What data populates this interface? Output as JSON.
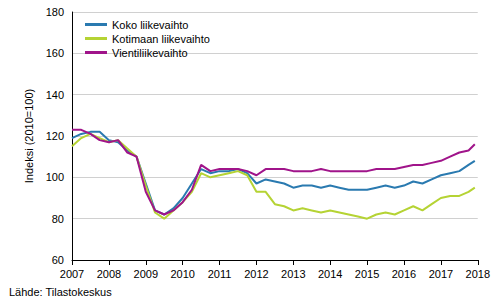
{
  "chart_data": {
    "type": "line",
    "y_label": "Indeksi (2010=100)",
    "source": "Lähde: Tilastokeskus",
    "x": [
      2007,
      2007.25,
      2007.5,
      2007.75,
      2008,
      2008.25,
      2008.5,
      2008.75,
      2009,
      2009.25,
      2009.5,
      2009.75,
      2010,
      2010.25,
      2010.5,
      2010.75,
      2011,
      2011.25,
      2011.5,
      2011.75,
      2012,
      2012.25,
      2012.5,
      2012.75,
      2013,
      2013.25,
      2013.5,
      2013.75,
      2014,
      2014.25,
      2014.5,
      2014.75,
      2015,
      2015.25,
      2015.5,
      2015.75,
      2016,
      2016.25,
      2016.5,
      2016.75,
      2017,
      2017.25,
      2017.5,
      2017.75,
      2017.92
    ],
    "series": [
      {
        "name": "Koko liikevaihto",
        "color": "#2a7ab0",
        "values": [
          119,
          121,
          122,
          122,
          118,
          117,
          113,
          110,
          97,
          84,
          82,
          85,
          90,
          97,
          104,
          102,
          103,
          103,
          104,
          102,
          97,
          99,
          98,
          97,
          95,
          96,
          96,
          95,
          96,
          95,
          94,
          94,
          94,
          95,
          96,
          95,
          96,
          98,
          97,
          99,
          101,
          102,
          103,
          106,
          108
        ]
      },
      {
        "name": "Kotimaan liikevaihto",
        "color": "#b5d334",
        "values": [
          115,
          119,
          121,
          119,
          117,
          118,
          114,
          110,
          96,
          83,
          80,
          84,
          88,
          93,
          102,
          100,
          101,
          102,
          103,
          101,
          93,
          93,
          87,
          86,
          84,
          85,
          84,
          83,
          84,
          83,
          82,
          81,
          80,
          82,
          83,
          82,
          84,
          86,
          84,
          87,
          90,
          91,
          91,
          93,
          95
        ]
      },
      {
        "name": "Vientiliikevaihto",
        "color": "#a0148a",
        "values": [
          123,
          123,
          121,
          118,
          117,
          118,
          112,
          110,
          93,
          84,
          82,
          84,
          88,
          94,
          106,
          103,
          104,
          104,
          104,
          103,
          101,
          104,
          104,
          104,
          103,
          103,
          103,
          104,
          103,
          103,
          103,
          103,
          103,
          104,
          104,
          104,
          105,
          106,
          106,
          107,
          108,
          110,
          112,
          113,
          116
        ]
      }
    ],
    "xlim": [
      2007,
      2018
    ],
    "xticks": [
      2007,
      2008,
      2009,
      2010,
      2011,
      2012,
      2013,
      2014,
      2015,
      2016,
      2017,
      2018
    ],
    "ylim": [
      60,
      180
    ],
    "yticks": [
      60,
      80,
      100,
      120,
      140,
      160,
      180
    ],
    "grid": true,
    "legend": "upper left"
  }
}
